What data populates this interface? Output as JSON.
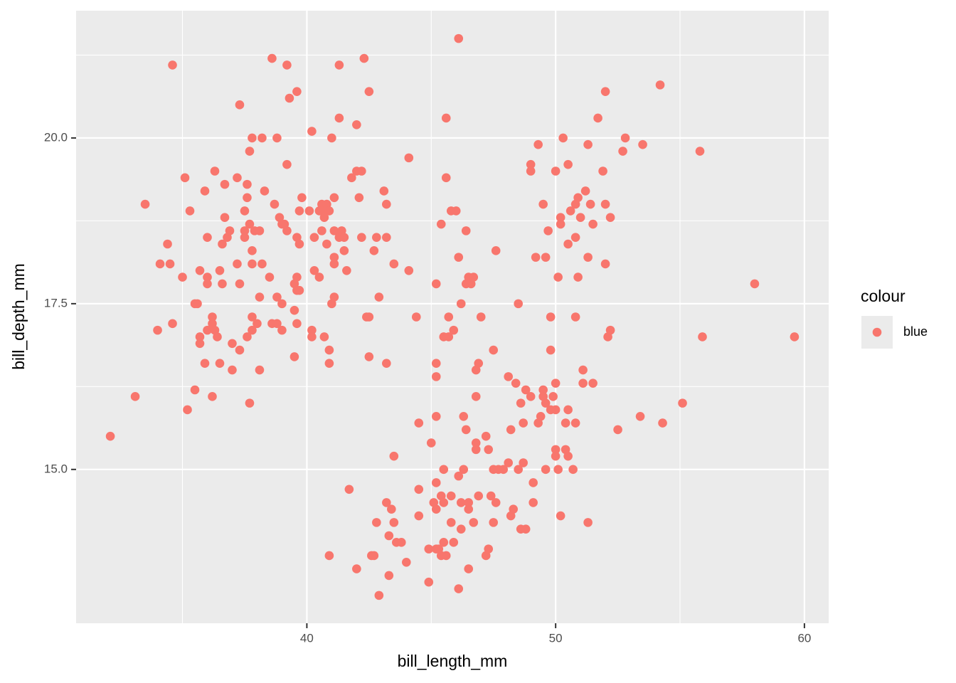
{
  "chart_data": {
    "type": "scatter",
    "x_label": "bill_length_mm",
    "y_label": "bill_depth_mm",
    "legend_title": "colour",
    "legend_position": "right",
    "grid": true,
    "xlim": [
      30.725,
      60.975
    ],
    "ylim": [
      12.68,
      21.92
    ],
    "xticks": [
      40,
      50,
      60
    ],
    "yticks": [
      {
        "value": 15,
        "label": "15.0"
      },
      17.5,
      {
        "value": 20,
        "label": "20.0"
      }
    ],
    "x_minor_breaks": [
      35,
      45,
      55
    ],
    "y_minor_breaks": [
      16.25,
      18.75,
      21.25
    ],
    "series": [
      {
        "name": "blue",
        "color": "#F8766D",
        "x": [
          32.1,
          33.1,
          33.5,
          34.0,
          34.1,
          34.4,
          34.5,
          34.6,
          34.6,
          35.0,
          35.1,
          35.2,
          35.3,
          35.5,
          35.5,
          35.6,
          35.7,
          35.7,
          35.7,
          35.9,
          35.9,
          36.0,
          36.0,
          36.0,
          36.0,
          36.2,
          36.2,
          36.2,
          36.3,
          36.3,
          36.4,
          36.5,
          36.5,
          36.6,
          36.6,
          36.7,
          36.7,
          36.8,
          36.9,
          37.0,
          37.0,
          37.2,
          37.2,
          37.3,
          37.3,
          37.3,
          37.5,
          37.5,
          37.6,
          37.6,
          37.5,
          37.6,
          37.7,
          37.7,
          37.7,
          37.8,
          37.8,
          37.8,
          37.8,
          37.8,
          37.9,
          38.0,
          38.1,
          38.1,
          38.1,
          38.2,
          38.2,
          38.3,
          38.5,
          38.6,
          38.6,
          38.7,
          38.8,
          38.8,
          38.8,
          38.9,
          39.0,
          39.0,
          39.0,
          39.1,
          39.2,
          39.2,
          39.2,
          39.3,
          39.5,
          39.5,
          39.5,
          39.6,
          39.6,
          39.6,
          39.6,
          39.6,
          39.7,
          39.7,
          39.7,
          39.8,
          40.1,
          40.2,
          40.2,
          40.2,
          40.3,
          40.3,
          40.5,
          40.5,
          40.6,
          40.6,
          40.6,
          40.7,
          40.7,
          40.8,
          40.8,
          40.9,
          40.9,
          40.9,
          41.0,
          41.0,
          41.1,
          41.1,
          41.1,
          41.1,
          41.1,
          41.3,
          41.3,
          41.3,
          41.4,
          41.5,
          41.5,
          41.6,
          41.7,
          40.9,
          41.8,
          42.0,
          42.0,
          42.1,
          42.2,
          42.2,
          42.3,
          42.4,
          42.5,
          42.5,
          42.5,
          42.7,
          42.0,
          42.6,
          42.7,
          42.8,
          42.8,
          42.9,
          42.9,
          43.1,
          43.2,
          43.2,
          43.2,
          43.2,
          43.3,
          43.3,
          43.4,
          43.5,
          43.5,
          43.5,
          43.6,
          43.8,
          44.0,
          44.1,
          44.1,
          44.4,
          44.5,
          44.5,
          44.5,
          44.9,
          44.9,
          45.0,
          45.2,
          45.2,
          45.2,
          45.2,
          45.2,
          45.2,
          45.2,
          45.1,
          45.3,
          45.4,
          45.4,
          45.4,
          45.5,
          45.5,
          45.5,
          45.5,
          45.6,
          45.6,
          45.6,
          45.7,
          45.7,
          45.8,
          45.8,
          45.8,
          45.9,
          45.9,
          46.0,
          46.1,
          46.1,
          46.1,
          46.1,
          46.2,
          46.2,
          46.2,
          46.3,
          46.3,
          46.4,
          46.4,
          46.4,
          46.5,
          46.5,
          46.5,
          46.5,
          46.6,
          46.7,
          46.7,
          46.8,
          46.8,
          46.8,
          46.8,
          46.9,
          46.9,
          47.0,
          47.2,
          47.2,
          47.3,
          47.3,
          47.4,
          47.5,
          47.5,
          47.5,
          47.6,
          47.6,
          47.7,
          47.9,
          48.1,
          48.1,
          48.2,
          48.2,
          48.4,
          48.3,
          48.5,
          48.5,
          48.6,
          48.6,
          48.7,
          48.7,
          48.8,
          48.8,
          49.0,
          49.0,
          49.0,
          49.1,
          49.1,
          49.2,
          49.3,
          49.3,
          49.4,
          49.5,
          49.5,
          49.5,
          49.6,
          49.6,
          49.6,
          49.7,
          49.8,
          49.8,
          49.8,
          49.9,
          50.0,
          50.0,
          50.0,
          50.0,
          50.0,
          50.1,
          50.1,
          50.2,
          50.2,
          50.2,
          50.3,
          50.4,
          50.4,
          50.5,
          50.5,
          50.5,
          50.5,
          50.6,
          50.7,
          50.8,
          50.8,
          50.8,
          50.8,
          50.9,
          50.9,
          51.0,
          51.1,
          51.1,
          51.2,
          51.3,
          51.3,
          51.3,
          51.4,
          51.5,
          51.5,
          51.7,
          51.9,
          52.0,
          52.0,
          52.0,
          52.1,
          52.2,
          52.2,
          52.5,
          52.7,
          52.8,
          53.4,
          53.5,
          54.2,
          54.3,
          55.1,
          55.8,
          55.9,
          58.0,
          59.6
        ],
        "values": [
          15.5,
          16.1,
          19.0,
          17.1,
          18.1,
          18.4,
          18.1,
          21.1,
          17.2,
          17.9,
          19.4,
          15.9,
          18.9,
          16.2,
          17.5,
          17.5,
          18.0,
          16.9,
          17.0,
          19.2,
          16.6,
          17.9,
          17.8,
          18.5,
          17.1,
          17.3,
          17.2,
          16.1,
          19.5,
          17.1,
          17.0,
          18.0,
          16.6,
          18.4,
          17.8,
          18.8,
          19.3,
          18.5,
          18.6,
          16.9,
          16.5,
          18.1,
          19.4,
          20.5,
          17.8,
          16.8,
          18.6,
          18.9,
          19.3,
          19.1,
          18.5,
          17.0,
          16.0,
          19.8,
          18.7,
          20.0,
          18.3,
          18.1,
          17.3,
          17.1,
          18.6,
          17.2,
          16.5,
          18.6,
          17.6,
          20.0,
          18.1,
          19.2,
          17.9,
          21.2,
          17.2,
          19.0,
          20.0,
          17.2,
          17.6,
          18.8,
          17.1,
          18.7,
          17.5,
          18.7,
          18.6,
          21.1,
          19.6,
          20.6,
          17.8,
          16.7,
          17.4,
          20.7,
          17.9,
          18.5,
          17.7,
          17.2,
          18.9,
          17.7,
          18.4,
          19.1,
          18.9,
          20.1,
          17.1,
          17.0,
          18.0,
          18.5,
          18.9,
          17.9,
          19.0,
          18.6,
          18.9,
          17.0,
          18.8,
          18.4,
          19.0,
          16.8,
          16.6,
          18.9,
          20.0,
          17.5,
          19.1,
          17.6,
          18.6,
          18.2,
          18.1,
          21.1,
          20.3,
          18.5,
          18.6,
          18.5,
          18.3,
          18.0,
          14.7,
          13.7,
          19.4,
          19.5,
          20.2,
          19.1,
          19.5,
          18.5,
          21.2,
          17.3,
          20.7,
          16.7,
          17.3,
          18.3,
          13.5,
          13.7,
          13.7,
          14.2,
          18.5,
          13.1,
          17.6,
          19.2,
          19.0,
          16.6,
          18.5,
          14.5,
          13.4,
          14.0,
          14.4,
          15.2,
          18.1,
          14.2,
          13.9,
          13.9,
          13.6,
          19.7,
          18.0,
          17.3,
          15.7,
          14.7,
          14.3,
          13.3,
          13.8,
          15.4,
          17.8,
          14.4,
          16.6,
          16.4,
          14.8,
          15.8,
          13.8,
          14.5,
          13.8,
          18.7,
          14.6,
          13.7,
          15.0,
          14.5,
          13.9,
          17.0,
          20.3,
          19.4,
          13.7,
          17.3,
          17.0,
          18.9,
          14.6,
          14.2,
          17.1,
          13.9,
          18.9,
          21.5,
          18.2,
          13.2,
          14.9,
          17.5,
          14.1,
          14.5,
          15.8,
          15.0,
          18.6,
          17.8,
          15.6,
          17.9,
          13.5,
          14.4,
          14.5,
          17.8,
          17.9,
          14.2,
          16.1,
          15.4,
          16.5,
          15.3,
          16.6,
          14.6,
          17.3,
          13.7,
          15.5,
          15.3,
          13.8,
          14.6,
          16.8,
          15.0,
          14.2,
          18.3,
          14.5,
          15.0,
          15.0,
          15.1,
          16.4,
          15.6,
          14.3,
          16.3,
          14.4,
          17.5,
          15.0,
          16.0,
          14.1,
          15.7,
          15.1,
          14.1,
          16.2,
          19.6,
          19.5,
          16.1,
          14.8,
          14.5,
          18.2,
          19.9,
          15.7,
          15.8,
          19.0,
          16.2,
          16.1,
          16.0,
          15.0,
          18.2,
          18.6,
          17.3,
          15.9,
          16.8,
          16.1,
          16.3,
          19.5,
          15.3,
          15.2,
          15.9,
          15.0,
          17.9,
          18.7,
          14.3,
          18.8,
          20.0,
          15.7,
          15.3,
          18.4,
          19.6,
          15.9,
          15.2,
          18.9,
          15.0,
          17.3,
          18.5,
          15.7,
          19.0,
          19.1,
          17.9,
          18.8,
          16.3,
          16.5,
          19.2,
          19.9,
          18.2,
          14.2,
          19.0,
          16.3,
          18.7,
          20.3,
          19.5,
          20.7,
          19.0,
          18.1,
          17.0,
          18.8,
          17.1,
          15.6,
          19.8,
          20.0,
          15.8,
          19.9,
          20.8,
          15.7,
          16.0,
          19.8,
          17.0,
          17.8,
          17.0
        ]
      }
    ]
  }
}
